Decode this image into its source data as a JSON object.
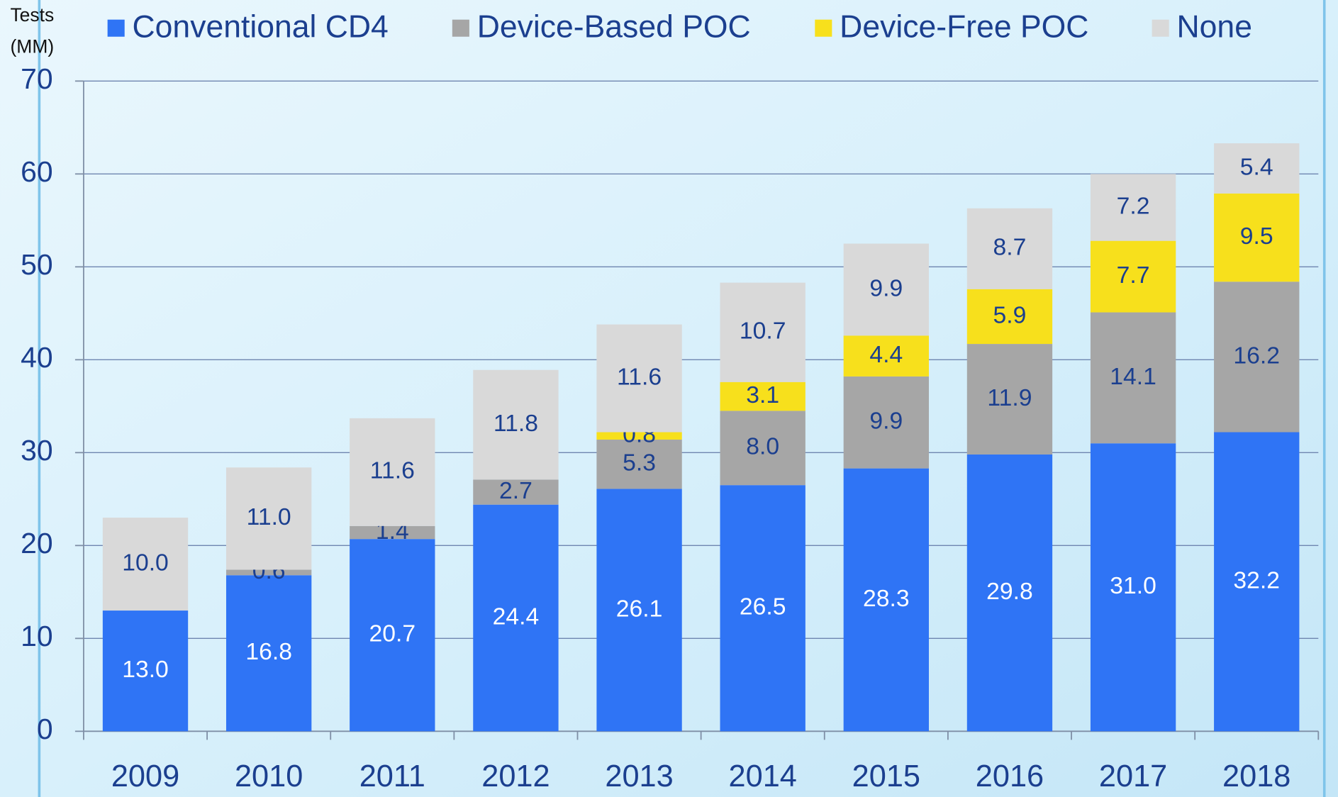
{
  "chart_data": {
    "type": "stacked_bar",
    "ylabel": [
      "Tests",
      "(MM)"
    ],
    "categories": [
      "2009",
      "2010",
      "2011",
      "2012",
      "2013",
      "2014",
      "2015",
      "2016",
      "2017",
      "2018"
    ],
    "series": [
      {
        "name": "Conventional CD4",
        "color": "#2f74f5",
        "values": [
          13.0,
          16.8,
          20.7,
          24.4,
          26.1,
          26.5,
          28.3,
          29.8,
          31.0,
          32.2
        ],
        "value_labels": [
          "13.0",
          "16.8",
          "20.7",
          "24.4",
          "26.1",
          "26.5",
          "28.3",
          "29.8",
          "31.0",
          "32.2"
        ]
      },
      {
        "name": "Device-Based POC",
        "color": "#a6a6a6",
        "values": [
          null,
          0.6,
          1.4,
          2.7,
          5.3,
          8.0,
          9.9,
          11.9,
          14.1,
          16.2
        ],
        "value_labels": [
          null,
          "0.6",
          "1.4",
          "2.7",
          "5.3",
          "8.0",
          "9.9",
          "11.9",
          "14.1",
          "16.2"
        ]
      },
      {
        "name": "Device-Free POC",
        "color": "#f7e01c",
        "values": [
          null,
          null,
          null,
          null,
          0.8,
          3.1,
          4.4,
          5.9,
          7.7,
          9.5
        ],
        "value_labels": [
          null,
          null,
          null,
          null,
          "0.8",
          "3.1",
          "4.4",
          "5.9",
          "7.7",
          "9.5"
        ]
      },
      {
        "name": "None",
        "color": "#d9d9d9",
        "values": [
          10.0,
          11.0,
          11.6,
          11.8,
          11.6,
          10.7,
          9.9,
          8.7,
          7.2,
          5.4
        ],
        "value_labels": [
          "10.0",
          "11.0",
          "11.6",
          "11.8",
          "11.6",
          "10.7",
          "9.9",
          "8.7",
          "7.2",
          "5.4"
        ]
      }
    ],
    "ylim": [
      0,
      70
    ],
    "yticks": [
      0,
      10,
      20,
      30,
      40,
      50,
      60,
      70
    ],
    "grid": true,
    "legend": "top"
  }
}
